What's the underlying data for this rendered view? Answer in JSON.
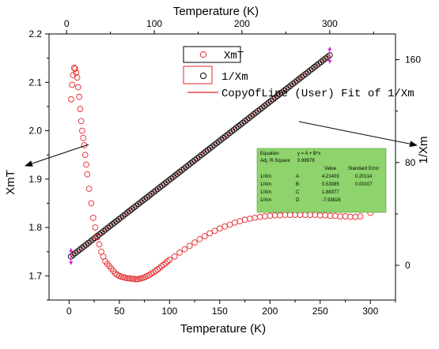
{
  "chart_data": {
    "type": "scatter",
    "xlabel_bottom": "Temperature (K)",
    "xlabel_top": "Temperature (K)",
    "ylabel_left": "XmT",
    "ylabel_right": "1/Xm",
    "x_bottom": {
      "range": [
        -20,
        325
      ],
      "ticks": [
        0,
        50,
        100,
        150,
        200,
        250,
        300
      ]
    },
    "x_top": {
      "range": [
        -20,
        375
      ],
      "ticks": [
        0,
        100,
        200,
        300
      ]
    },
    "y_left": {
      "range": [
        1.65,
        2.2
      ],
      "ticks": [
        1.7,
        1.8,
        1.9,
        2.0,
        2.1,
        2.2
      ]
    },
    "y_right": {
      "range": [
        -27,
        180
      ],
      "ticks": [
        0,
        80,
        160
      ]
    },
    "legend": {
      "position": "top-center",
      "entries": [
        {
          "label": "XmT",
          "marker": "circle",
          "color": "#e8262a"
        },
        {
          "label": "1/Xm",
          "marker": "circle",
          "color": "#000000"
        },
        {
          "label": "CopyOfLine (User) Fit of 1/Xm",
          "marker": "line",
          "color": "#e8262a"
        }
      ]
    },
    "series": [
      {
        "name": "XmT",
        "axis": "left-bottom",
        "color": "#e8262a",
        "x": [
          2,
          3,
          4,
          5,
          6,
          7,
          8,
          9,
          10,
          11,
          12,
          13,
          14,
          15,
          16,
          17,
          18,
          20,
          22,
          24,
          26,
          28,
          30,
          32,
          34,
          36,
          38,
          40,
          42,
          44,
          46,
          48,
          50,
          52,
          54,
          56,
          58,
          60,
          62,
          64,
          66,
          68,
          70,
          72,
          74,
          76,
          78,
          80,
          82,
          84,
          86,
          88,
          90,
          92,
          94,
          96,
          98,
          100,
          105,
          110,
          115,
          120,
          125,
          130,
          135,
          140,
          145,
          150,
          155,
          160,
          165,
          170,
          175,
          180,
          185,
          190,
          195,
          200,
          205,
          210,
          215,
          220,
          225,
          230,
          235,
          240,
          245,
          250,
          255,
          260,
          265,
          270,
          275,
          280,
          285,
          290,
          300
        ],
        "y": [
          2.065,
          2.095,
          2.115,
          2.13,
          2.128,
          2.12,
          2.11,
          2.09,
          2.07,
          2.045,
          2.02,
          2.0,
          1.985,
          1.97,
          1.95,
          1.93,
          1.91,
          1.88,
          1.85,
          1.82,
          1.8,
          1.78,
          1.765,
          1.75,
          1.74,
          1.73,
          1.725,
          1.72,
          1.715,
          1.71,
          1.705,
          1.702,
          1.7,
          1.698,
          1.697,
          1.696,
          1.695,
          1.695,
          1.694,
          1.694,
          1.693,
          1.693,
          1.694,
          1.695,
          1.696,
          1.698,
          1.7,
          1.702,
          1.705,
          1.707,
          1.71,
          1.713,
          1.716,
          1.72,
          1.723,
          1.726,
          1.73,
          1.733,
          1.74,
          1.748,
          1.755,
          1.762,
          1.769,
          1.776,
          1.782,
          1.788,
          1.793,
          1.798,
          1.802,
          1.806,
          1.81,
          1.813,
          1.816,
          1.818,
          1.82,
          1.822,
          1.823,
          1.824,
          1.825,
          1.825,
          1.826,
          1.826,
          1.826,
          1.826,
          1.826,
          1.826,
          1.826,
          1.825,
          1.825,
          1.824,
          1.824,
          1.823,
          1.823,
          1.822,
          1.822,
          1.823,
          1.83
        ]
      },
      {
        "name": "1/Xm",
        "axis": "right-top",
        "color": "#000000",
        "x_range": [
          5,
          300
        ],
        "point_count": 120,
        "fit_line": {
          "A": 4.21403,
          "B": 0.53085
        }
      },
      {
        "name": "CopyOfLine (User) Fit of 1/Xm",
        "axis": "right-top",
        "color": "#e8262a",
        "x": [
          5,
          300
        ],
        "y": [
          6.87,
          163.47
        ]
      }
    ],
    "fit_table": {
      "header_rows": [
        [
          "Equation",
          "y = A + B*x"
        ],
        [
          "Adj. R-Square",
          "0.99978"
        ]
      ],
      "columns": [
        "",
        "",
        "Value",
        "Standard Error"
      ],
      "rows": [
        [
          "1/Xm",
          "A",
          "4.21403",
          "0.20114"
        ],
        [
          "1/Xm",
          "B",
          "0.53085",
          "0.00107"
        ],
        [
          "1/Xm",
          "C",
          "1.88377",
          ""
        ],
        [
          "1/Xm",
          "D",
          "-7.93826",
          ""
        ]
      ],
      "background": "#8ed36b"
    },
    "markers": [
      {
        "x_top": 5,
        "color": "#e020e0"
      },
      {
        "x_top": 300,
        "color": "#e020e0"
      }
    ],
    "grid": false
  }
}
